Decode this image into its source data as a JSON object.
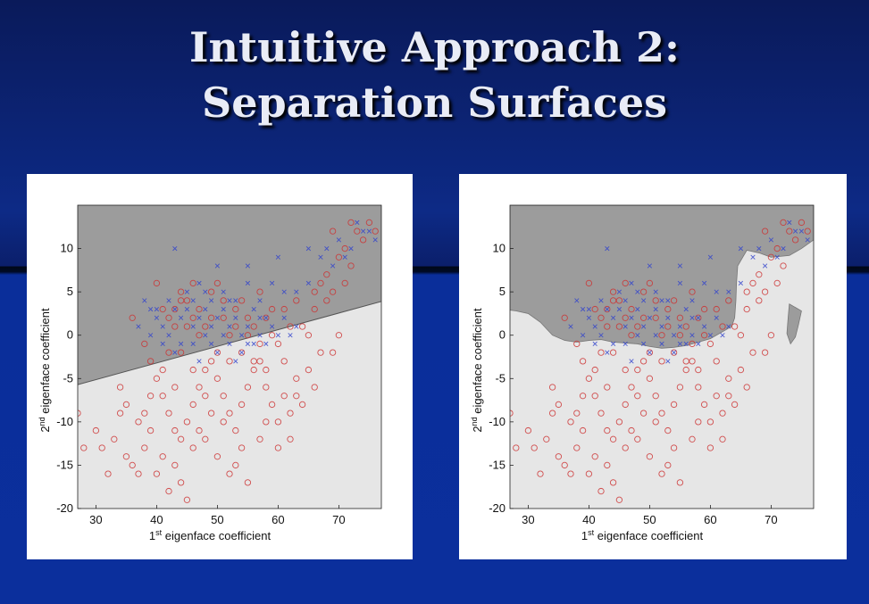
{
  "slide": {
    "title_line1": "Intuitive Approach 2:",
    "title_line2": "Separation Surfaces"
  },
  "colors": {
    "class_a": "#cc3333",
    "class_b": "#3344cc",
    "region_dark": "#9c9c9c",
    "region_light": "#e6e6e6"
  },
  "chart_data": [
    {
      "type": "scatter",
      "boundary": "linear",
      "xlabel": "1st eigenface coefficient",
      "ylabel": "2nd eigenface coefficient",
      "xlim": [
        27,
        77
      ],
      "ylim": [
        -20,
        15
      ],
      "xticks": [
        30,
        40,
        50,
        60,
        70
      ],
      "yticks": [
        10,
        5,
        0,
        -5,
        -10,
        -15,
        -20
      ],
      "boundary_line": [
        [
          27,
          -5.7
        ],
        [
          77,
          3.9
        ]
      ]
    },
    {
      "type": "scatter",
      "boundary": "nonlinear",
      "xlabel": "1st eigenface coefficient",
      "ylabel": "2nd eigenface coefficient",
      "xlim": [
        27,
        77
      ],
      "ylim": [
        -20,
        15
      ],
      "xticks": [
        30,
        40,
        50,
        60,
        70
      ],
      "yticks": [
        10,
        5,
        0,
        -5,
        -10,
        -15,
        -20
      ],
      "boundary_polygon": [
        [
          27,
          15
        ],
        [
          77,
          15
        ],
        [
          77,
          11
        ],
        [
          75,
          10
        ],
        [
          73,
          9.2
        ],
        [
          70,
          9
        ],
        [
          68,
          9.5
        ],
        [
          66,
          9.8
        ],
        [
          65,
          8.6
        ],
        [
          64.5,
          8
        ],
        [
          64.3,
          6
        ],
        [
          64.2,
          4
        ],
        [
          64,
          2
        ],
        [
          63.5,
          1
        ],
        [
          62,
          0.4
        ],
        [
          60,
          -0.4
        ],
        [
          58,
          -0.8
        ],
        [
          56,
          -1.2
        ],
        [
          54,
          -1.4
        ],
        [
          52,
          -1.5
        ],
        [
          50,
          -1.3
        ],
        [
          48,
          -1
        ],
        [
          46,
          -0.9
        ],
        [
          44,
          -0.8
        ],
        [
          42,
          -0.5
        ],
        [
          40,
          -0.6
        ],
        [
          38,
          -0.8
        ],
        [
          36,
          -0.6
        ],
        [
          34,
          0
        ],
        [
          32,
          1.5
        ],
        [
          30,
          2.5
        ],
        [
          28,
          2.8
        ],
        [
          27,
          2.9
        ]
      ],
      "island_polygon": [
        [
          73,
          3.6
        ],
        [
          74,
          3.2
        ],
        [
          75,
          2.8
        ],
        [
          74.5,
          1.2
        ],
        [
          74,
          -0.2
        ],
        [
          73.2,
          -1
        ],
        [
          72.6,
          0.2
        ],
        [
          72.8,
          2
        ]
      ]
    }
  ],
  "scatter_points": {
    "class_a": [
      [
        40,
        6
      ],
      [
        41,
        3
      ],
      [
        42,
        2
      ],
      [
        43,
        1
      ],
      [
        44,
        5
      ],
      [
        45,
        4
      ],
      [
        46,
        2
      ],
      [
        47,
        3
      ],
      [
        48,
        1
      ],
      [
        49,
        5
      ],
      [
        50,
        6
      ],
      [
        51,
        2
      ],
      [
        52,
        0
      ],
      [
        53,
        3
      ],
      [
        54,
        4
      ],
      [
        55,
        2
      ],
      [
        56,
        1
      ],
      [
        57,
        -1
      ],
      [
        58,
        2
      ],
      [
        59,
        0
      ],
      [
        60,
        -1
      ],
      [
        62,
        1
      ],
      [
        64,
        1
      ],
      [
        65,
        0
      ],
      [
        66,
        3
      ],
      [
        67,
        6
      ],
      [
        68,
        7
      ],
      [
        69,
        5
      ],
      [
        70,
        9
      ],
      [
        71,
        10
      ],
      [
        72,
        13
      ],
      [
        73,
        12
      ],
      [
        74,
        11
      ],
      [
        75,
        13
      ],
      [
        76,
        12
      ],
      [
        67,
        -2
      ],
      [
        69,
        -2
      ],
      [
        63,
        4
      ],
      [
        61,
        3
      ],
      [
        36,
        2
      ],
      [
        38,
        -1
      ],
      [
        39,
        -3
      ],
      [
        40,
        -5
      ],
      [
        41,
        -7
      ],
      [
        42,
        -9
      ],
      [
        43,
        -11
      ],
      [
        44,
        -12
      ],
      [
        45,
        -10
      ],
      [
        46,
        -8
      ],
      [
        47,
        -6
      ],
      [
        48,
        -4
      ],
      [
        49,
        -3
      ],
      [
        50,
        -5
      ],
      [
        51,
        -7
      ],
      [
        52,
        -9
      ],
      [
        53,
        -11
      ],
      [
        54,
        -8
      ],
      [
        55,
        -6
      ],
      [
        56,
        -4
      ],
      [
        57,
        -3
      ],
      [
        58,
        -6
      ],
      [
        59,
        -8
      ],
      [
        60,
        -10
      ],
      [
        61,
        -7
      ],
      [
        62,
        -9
      ],
      [
        63,
        -5
      ],
      [
        64,
        -8
      ],
      [
        65,
        -4
      ],
      [
        30,
        -11
      ],
      [
        31,
        -13
      ],
      [
        32,
        -16
      ],
      [
        33,
        -12
      ],
      [
        34,
        -9
      ],
      [
        35,
        -14
      ],
      [
        36,
        -15
      ],
      [
        37,
        -16
      ],
      [
        38,
        -13
      ],
      [
        39,
        -11
      ],
      [
        40,
        -16
      ],
      [
        41,
        -14
      ],
      [
        42,
        -18
      ],
      [
        43,
        -15
      ],
      [
        44,
        -17
      ],
      [
        45,
        -19
      ],
      [
        46,
        -13
      ],
      [
        47,
        -11
      ],
      [
        48,
        -12
      ],
      [
        49,
        -9
      ],
      [
        50,
        -14
      ],
      [
        51,
        -10
      ],
      [
        52,
        -16
      ],
      [
        53,
        -15
      ],
      [
        54,
        -13
      ],
      [
        55,
        -17
      ],
      [
        57,
        -12
      ],
      [
        58,
        -10
      ],
      [
        60,
        -13
      ],
      [
        44,
        -2
      ],
      [
        43,
        -6
      ],
      [
        46,
        -4
      ],
      [
        48,
        -7
      ],
      [
        50,
        -2
      ],
      [
        52,
        -3
      ],
      [
        54,
        -2
      ],
      [
        56,
        -3
      ],
      [
        58,
        -4
      ],
      [
        55,
        0
      ],
      [
        53,
        1
      ],
      [
        51,
        4
      ],
      [
        49,
        2
      ],
      [
        47,
        0
      ],
      [
        45,
        1
      ],
      [
        43,
        3
      ],
      [
        42,
        -2
      ],
      [
        41,
        -4
      ],
      [
        39,
        -7
      ],
      [
        38,
        -9
      ],
      [
        37,
        -10
      ],
      [
        35,
        -8
      ],
      [
        34,
        -6
      ],
      [
        28,
        -13
      ],
      [
        27,
        -9
      ],
      [
        61,
        -3
      ],
      [
        63,
        -7
      ],
      [
        62,
        -12
      ],
      [
        66,
        -6
      ],
      [
        70,
        0
      ],
      [
        71,
        6
      ],
      [
        72,
        8
      ],
      [
        69,
        12
      ],
      [
        68,
        4
      ],
      [
        66,
        5
      ],
      [
        57,
        5
      ],
      [
        59,
        3
      ],
      [
        46,
        6
      ],
      [
        44,
        4
      ]
    ],
    "class_b": [
      [
        38,
        4
      ],
      [
        39,
        3
      ],
      [
        40,
        2
      ],
      [
        41,
        1
      ],
      [
        42,
        4
      ],
      [
        43,
        3
      ],
      [
        44,
        2
      ],
      [
        45,
        3
      ],
      [
        46,
        1
      ],
      [
        47,
        2
      ],
      [
        48,
        3
      ],
      [
        49,
        1
      ],
      [
        50,
        2
      ],
      [
        51,
        0
      ],
      [
        52,
        1
      ],
      [
        53,
        2
      ],
      [
        54,
        0
      ],
      [
        55,
        1
      ],
      [
        56,
        3
      ],
      [
        57,
        2
      ],
      [
        58,
        -1
      ],
      [
        59,
        1
      ],
      [
        60,
        0
      ],
      [
        61,
        2
      ],
      [
        62,
        0
      ],
      [
        63,
        1
      ],
      [
        42,
        0
      ],
      [
        44,
        -1
      ],
      [
        46,
        -1
      ],
      [
        48,
        0
      ],
      [
        50,
        -2
      ],
      [
        52,
        -1
      ],
      [
        54,
        -2
      ],
      [
        56,
        -1
      ],
      [
        58,
        2
      ],
      [
        45,
        5
      ],
      [
        47,
        6
      ],
      [
        49,
        4
      ],
      [
        51,
        5
      ],
      [
        53,
        4
      ],
      [
        55,
        6
      ],
      [
        57,
        4
      ],
      [
        59,
        6
      ],
      [
        61,
        5
      ],
      [
        63,
        5
      ],
      [
        65,
        6
      ],
      [
        67,
        9
      ],
      [
        69,
        8
      ],
      [
        71,
        9
      ],
      [
        73,
        13
      ],
      [
        74,
        12
      ],
      [
        75,
        12
      ],
      [
        76,
        11
      ],
      [
        72,
        10
      ],
      [
        70,
        11
      ],
      [
        68,
        10
      ],
      [
        43,
        10
      ],
      [
        50,
        8
      ],
      [
        55,
        8
      ],
      [
        60,
        9
      ],
      [
        65,
        10
      ],
      [
        46,
        4
      ],
      [
        48,
        5
      ],
      [
        40,
        3
      ],
      [
        37,
        1
      ],
      [
        39,
        0
      ],
      [
        41,
        -1
      ],
      [
        43,
        -2
      ],
      [
        53,
        -3
      ],
      [
        55,
        -1
      ],
      [
        57,
        0
      ],
      [
        47,
        -3
      ],
      [
        49,
        -1
      ],
      [
        51,
        3
      ],
      [
        52,
        4
      ]
    ]
  }
}
